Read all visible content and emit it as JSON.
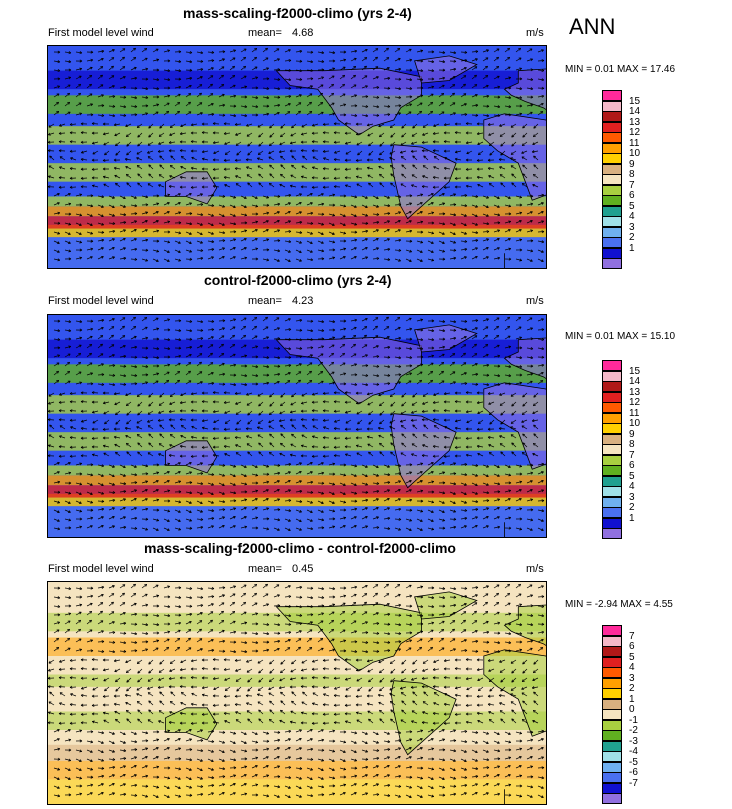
{
  "season": "ANN",
  "panels": [
    {
      "title": "mass-scaling-f2000-climo (yrs 2-4)",
      "left_label": "First model level wind",
      "mean_label": "mean=",
      "mean_value": "4.68",
      "units": "m/s",
      "minmax": "MIN =  0.01 MAX =  17.46",
      "mode": "abs",
      "colorbar": {
        "labels": [
          "15",
          "14",
          "13",
          "12",
          "11",
          "10",
          "9",
          "8",
          "7",
          "6",
          "5",
          "4",
          "3",
          "2",
          "1"
        ],
        "colors": [
          "#ff2a9a",
          "#f5b8c8",
          "#b01818",
          "#e02020",
          "#ff5a00",
          "#ffa000",
          "#ffd000",
          "#d8b080",
          "#f5e4c0",
          "#a8d040",
          "#60b020",
          "#20a090",
          "#a0e0e8",
          "#6fb0f0",
          "#4a70f0",
          "#1010d0",
          "#9070e0"
        ]
      }
    },
    {
      "title": "control-f2000-climo (yrs 2-4)",
      "left_label": "First model level wind",
      "mean_label": "mean=",
      "mean_value": "4.23",
      "units": "m/s",
      "minmax": "MIN =  0.01 MAX =  15.10",
      "mode": "abs",
      "colorbar": {
        "labels": [
          "15",
          "14",
          "13",
          "12",
          "11",
          "10",
          "9",
          "8",
          "7",
          "6",
          "5",
          "4",
          "3",
          "2",
          "1"
        ],
        "colors": [
          "#ff2a9a",
          "#f5b8c8",
          "#b01818",
          "#e02020",
          "#ff5a00",
          "#ffa000",
          "#ffd000",
          "#d8b080",
          "#f5e4c0",
          "#a8d040",
          "#60b020",
          "#20a090",
          "#a0e0e8",
          "#6fb0f0",
          "#4a70f0",
          "#1010d0",
          "#9070e0"
        ]
      }
    },
    {
      "title": "mass-scaling-f2000-climo - control-f2000-climo",
      "left_label": "First model level wind",
      "mean_label": "mean=",
      "mean_value": "0.45",
      "units": "m/s",
      "minmax": "MIN = -2.94 MAX =  4.55",
      "mode": "diff",
      "colorbar": {
        "labels": [
          "7",
          "6",
          "5",
          "4",
          "3",
          "2",
          "1",
          "0",
          "-1",
          "-2",
          "-3",
          "-4",
          "-5",
          "-6",
          "-7"
        ],
        "colors": [
          "#ff2a9a",
          "#f5b8c8",
          "#b01818",
          "#e02020",
          "#ff5a00",
          "#ffa000",
          "#ffd000",
          "#d8b080",
          "#f5e4c0",
          "#a8d040",
          "#60b020",
          "#20a090",
          "#a0e0e8",
          "#6fb0f0",
          "#4a70f0",
          "#1010d0",
          "#9070e0"
        ]
      }
    }
  ],
  "palette": {
    "abs_bg": "#3355ee",
    "diff_bg": "#f5e4c0",
    "land_abs": "#9070e0",
    "coast": "#000000"
  }
}
